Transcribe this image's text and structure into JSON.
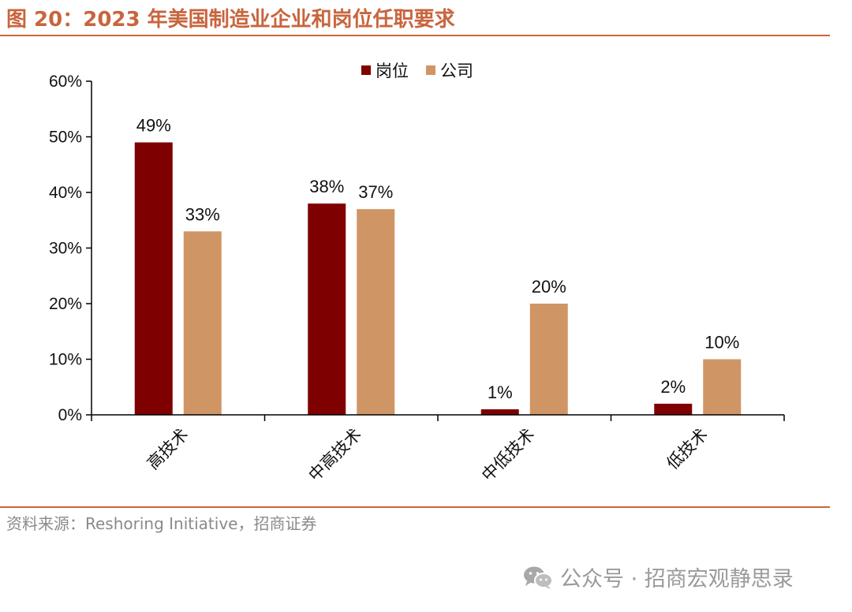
{
  "figure": {
    "title": "图 20：2023 年美国制造业企业和岗位任职要求",
    "source": "资料来源：Reshoring Initiative，招商证券",
    "watermark": "公众号 · 招商宏观静思录"
  },
  "colors": {
    "accent": "#c8653e",
    "series_1": "#7f0000",
    "series_2": "#d09565",
    "axis": "#000000"
  },
  "icons": {
    "watermark": "wechat-icon"
  },
  "chart_data": {
    "type": "bar",
    "title": "",
    "xlabel": "",
    "ylabel": "",
    "categories": [
      "高技术",
      "中高技术",
      "中低技术",
      "低技术"
    ],
    "series": [
      {
        "name": "岗位",
        "values": [
          49,
          38,
          1,
          2
        ],
        "labels": [
          "49%",
          "38%",
          "1%",
          "2%"
        ]
      },
      {
        "name": "公司",
        "values": [
          33,
          37,
          20,
          10
        ],
        "labels": [
          "33%",
          "37%",
          "20%",
          "10%"
        ]
      }
    ],
    "ylim": [
      0,
      60
    ],
    "yticks": [
      0,
      10,
      20,
      30,
      40,
      50,
      60
    ],
    "ytick_labels": [
      "0%",
      "10%",
      "20%",
      "30%",
      "40%",
      "50%",
      "60%"
    ],
    "grid": false,
    "legend_position": "top-center",
    "x_label_rotation": -45
  }
}
